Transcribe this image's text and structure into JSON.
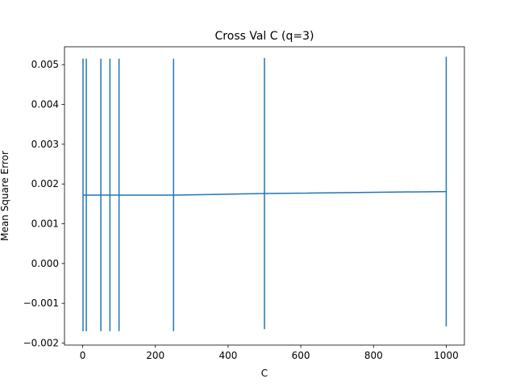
{
  "chart_data": {
    "type": "line",
    "title": "Cross Val C (q=3)",
    "xlabel": "C",
    "ylabel": "Mean Square Error",
    "xlim": [
      -50,
      1050
    ],
    "ylim": [
      -0.00205,
      0.00545
    ],
    "x_ticks": [
      0,
      200,
      400,
      600,
      800,
      1000
    ],
    "x_tick_labels": [
      "0",
      "200",
      "400",
      "600",
      "800",
      "1000"
    ],
    "y_ticks": [
      -0.002,
      -0.001,
      0.0,
      0.001,
      0.002,
      0.003,
      0.004,
      0.005
    ],
    "y_tick_labels": [
      "−0.002",
      "−0.001",
      "0.000",
      "0.001",
      "0.002",
      "0.003",
      "0.004",
      "0.005"
    ],
    "grid": false,
    "series": [
      {
        "x": [
          1,
          10,
          50,
          75,
          100,
          250,
          500,
          1000
        ],
        "y": [
          0.00172,
          0.00172,
          0.00172,
          0.00172,
          0.00172,
          0.00172,
          0.00176,
          0.00181
        ],
        "yerr_low": [
          -0.0017,
          -0.0017,
          -0.0017,
          -0.0017,
          -0.0017,
          -0.0017,
          -0.00165,
          -0.00158
        ],
        "yerr_high": [
          0.00515,
          0.00515,
          0.00515,
          0.00515,
          0.00515,
          0.00515,
          0.00517,
          0.0052
        ]
      }
    ],
    "colors": {
      "series": "#1f77b4",
      "axes": "#000000"
    }
  }
}
